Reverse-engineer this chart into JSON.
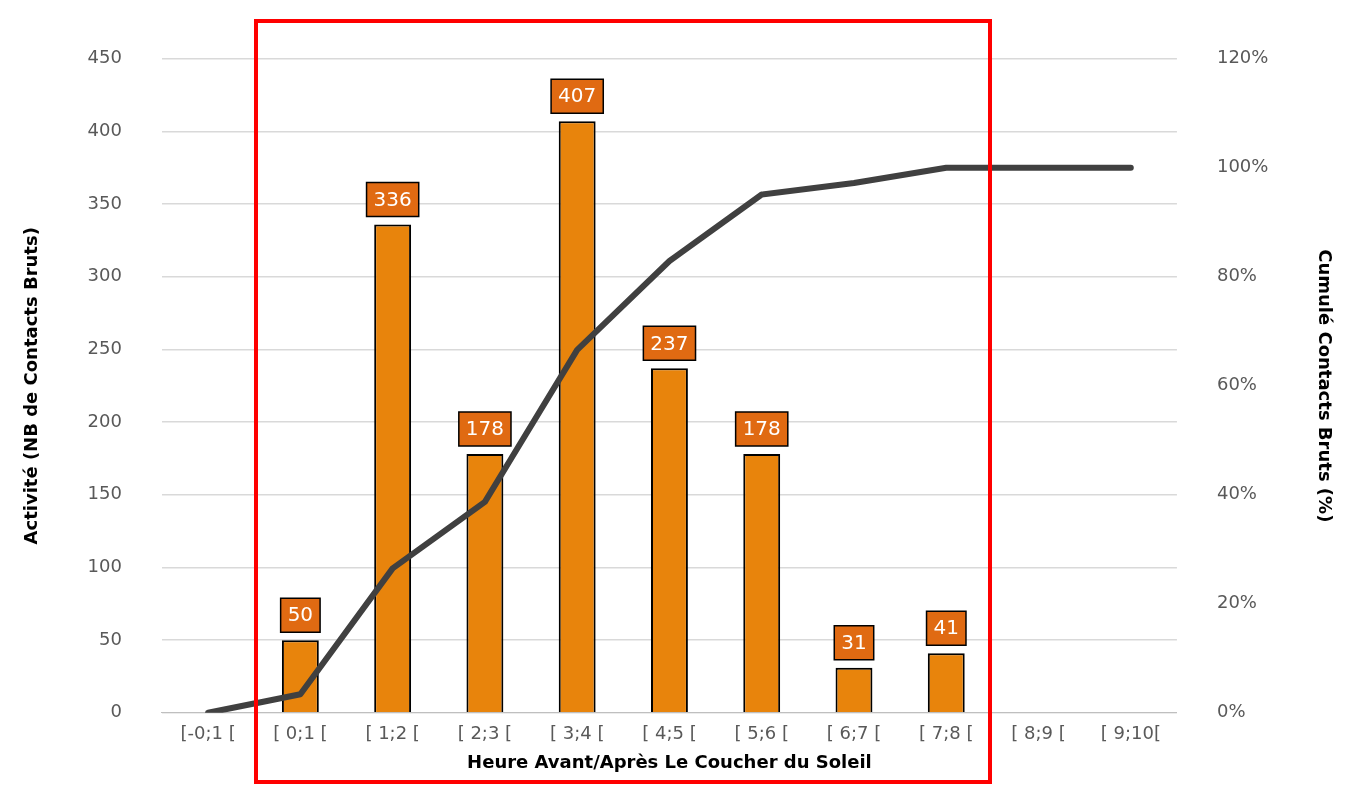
{
  "chart_data": {
    "type": "bar",
    "xlabel": "Heure Avant/Après Le Coucher du Soleil",
    "ylabel": "Activité (NB de Contacts Bruts)",
    "y2label": "Cumulé Contacts Bruts (%)",
    "categories": [
      "[-0;1 [",
      "[ 0;1 [",
      "[ 1;2 [",
      "[ 2;3 [",
      "[ 3;4 [",
      "[ 4;5 [",
      "[ 5;6 [",
      "[ 6;7 [",
      "[ 7;8 [",
      "[ 8;9 [",
      "[ 9;10["
    ],
    "series": [
      {
        "color": "#e8840c",
        "values": [
          null,
          50,
          336,
          178,
          407,
          237,
          178,
          31,
          41,
          null,
          null
        ],
        "value_labels": [
          null,
          "50",
          "336",
          "178",
          "407",
          "237",
          "178",
          "31",
          "41",
          null,
          null
        ]
      },
      {
        "type": "line",
        "axis": "y2",
        "color": "#404040",
        "values": [
          0,
          3.4,
          26.5,
          38.7,
          66.6,
          82.9,
          95.1,
          97.2,
          100,
          100,
          100
        ]
      }
    ],
    "ylim": [
      0,
      450
    ],
    "yticks": [
      0,
      50,
      100,
      150,
      200,
      250,
      300,
      350,
      400,
      450
    ],
    "y2lim": [
      0,
      120
    ],
    "y2ticks": [
      {
        "value": 0,
        "label": "0%"
      },
      {
        "value": 20,
        "label": "20%"
      },
      {
        "value": 40,
        "label": "40%"
      },
      {
        "value": 60,
        "label": "60%"
      },
      {
        "value": 80,
        "label": "80%"
      },
      {
        "value": 100,
        "label": "100%"
      },
      {
        "value": 120,
        "label": "120%"
      }
    ],
    "grid": "y",
    "legend": false,
    "marker": "none"
  }
}
